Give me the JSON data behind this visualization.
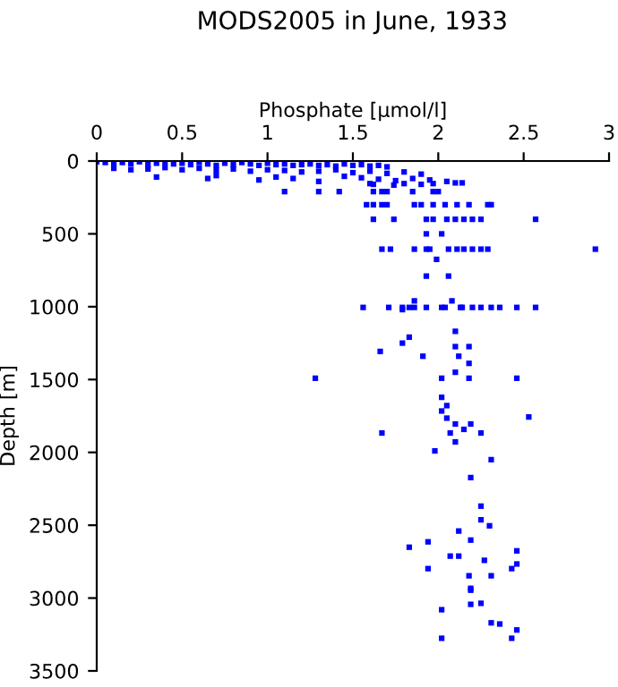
{
  "chart_data": {
    "type": "scatter",
    "title": "MODS2005 in June, 1933",
    "xlabel": "Phosphate [µmol/l]",
    "ylabel": "Depth [m]",
    "xlim": [
      0,
      3
    ],
    "ylim": [
      3500,
      0
    ],
    "xticks": [
      0,
      0.5,
      1,
      1.5,
      2,
      2.5,
      3
    ],
    "yticks": [
      0,
      500,
      1000,
      1500,
      2000,
      2500,
      3000,
      3500
    ],
    "grid": false,
    "marker": "square",
    "series": [
      {
        "color": "#0000ff",
        "x": [
          0.0,
          0.05,
          0.1,
          0.15,
          0.2,
          0.25,
          0.3,
          0.35,
          0.4,
          0.45,
          0.5,
          0.55,
          0.6,
          0.65,
          0.7,
          0.75,
          0.8,
          0.85,
          0.9,
          0.95,
          1.0,
          1.05,
          1.1,
          1.15,
          1.2,
          1.25,
          1.3,
          1.35,
          1.4,
          1.45,
          1.5,
          1.55,
          1.6,
          1.65,
          1.7,
          0.1,
          0.2,
          0.3,
          0.4,
          0.5,
          0.6,
          0.7,
          0.8,
          0.9,
          1.0,
          1.1,
          1.2,
          1.3,
          1.4,
          1.5,
          1.6,
          1.7,
          1.8,
          1.9,
          0.35,
          0.65,
          0.7,
          0.95,
          1.05,
          1.15,
          1.3,
          1.45,
          1.55,
          1.65,
          1.75,
          1.85,
          1.95,
          2.05,
          2.1,
          1.6,
          1.62,
          1.74,
          1.8,
          1.9,
          1.97,
          2.14,
          1.1,
          1.3,
          1.42,
          1.62,
          1.67,
          1.7,
          1.85,
          1.97,
          2.0,
          1.58,
          1.62,
          1.67,
          1.7,
          1.86,
          1.9,
          1.97,
          2.04,
          2.11,
          2.18,
          2.29,
          2.31,
          1.62,
          1.74,
          1.93,
          1.97,
          2.05,
          2.1,
          2.15,
          2.2,
          2.25,
          2.57,
          1.93,
          2.02,
          1.67,
          1.72,
          1.86,
          1.93,
          1.95,
          2.06,
          2.11,
          2.15,
          2.2,
          2.25,
          2.29,
          2.92,
          1.99,
          1.93,
          2.06,
          1.86,
          2.08,
          1.56,
          1.71,
          1.79,
          1.79,
          1.83,
          1.86,
          1.93,
          2.02,
          2.04,
          2.13,
          2.14,
          2.2,
          2.25,
          2.31,
          2.36,
          2.46,
          2.57,
          2.1,
          1.83,
          1.79,
          2.1,
          2.18,
          1.66,
          1.91,
          2.12,
          2.18,
          2.1,
          1.28,
          2.02,
          2.18,
          2.46,
          2.02,
          2.05,
          2.02,
          2.05,
          2.53,
          2.1,
          2.19,
          2.15,
          1.67,
          2.07,
          2.25,
          2.1,
          1.98,
          2.31,
          2.19,
          2.25,
          2.25,
          2.3,
          2.12,
          2.19,
          1.94,
          1.83,
          2.46,
          2.07,
          2.12,
          2.27,
          2.46,
          1.94,
          2.43,
          2.18,
          2.31,
          2.19,
          2.19,
          2.25,
          2.19,
          2.02,
          2.31,
          2.36,
          2.46,
          2.02,
          2.43
        ],
        "values": [
          5,
          10,
          15,
          10,
          20,
          5,
          25,
          15,
          10,
          20,
          15,
          25,
          10,
          20,
          30,
          15,
          25,
          10,
          20,
          30,
          15,
          25,
          20,
          30,
          25,
          20,
          30,
          25,
          35,
          20,
          30,
          25,
          35,
          30,
          40,
          50,
          60,
          55,
          45,
          60,
          50,
          65,
          55,
          70,
          60,
          65,
          75,
          70,
          60,
          80,
          70,
          85,
          75,
          90,
          110,
          120,
          100,
          130,
          110,
          120,
          140,
          105,
          115,
          125,
          135,
          120,
          130,
          140,
          150,
          155,
          160,
          165,
          155,
          160,
          155,
          150,
          210,
          210,
          210,
          210,
          210,
          210,
          210,
          210,
          210,
          300,
          300,
          300,
          300,
          300,
          300,
          300,
          300,
          300,
          300,
          300,
          300,
          400,
          400,
          400,
          400,
          400,
          400,
          400,
          400,
          400,
          400,
          500,
          500,
          605,
          605,
          605,
          605,
          605,
          605,
          605,
          605,
          605,
          605,
          605,
          605,
          675,
          790,
          790,
          960,
          960,
          1005,
          1005,
          1005,
          1020,
          1005,
          1005,
          1005,
          1005,
          1005,
          1005,
          1005,
          1005,
          1005,
          1005,
          1005,
          1005,
          1005,
          1169,
          1209,
          1250,
          1274,
          1274,
          1307,
          1340,
          1340,
          1389,
          1450,
          1491,
          1491,
          1491,
          1491,
          1622,
          1679,
          1716,
          1765,
          1757,
          1805,
          1805,
          1842,
          1867,
          1867,
          1867,
          1928,
          1990,
          2050,
          2173,
          2369,
          2463,
          2504,
          2540,
          2602,
          2614,
          2651,
          2676,
          2712,
          2712,
          2741,
          2766,
          2798,
          2798,
          2847,
          2847,
          2933,
          2946,
          3036,
          3043,
          3080,
          3170,
          3178,
          3219,
          3276,
          3276
        ]
      }
    ]
  }
}
